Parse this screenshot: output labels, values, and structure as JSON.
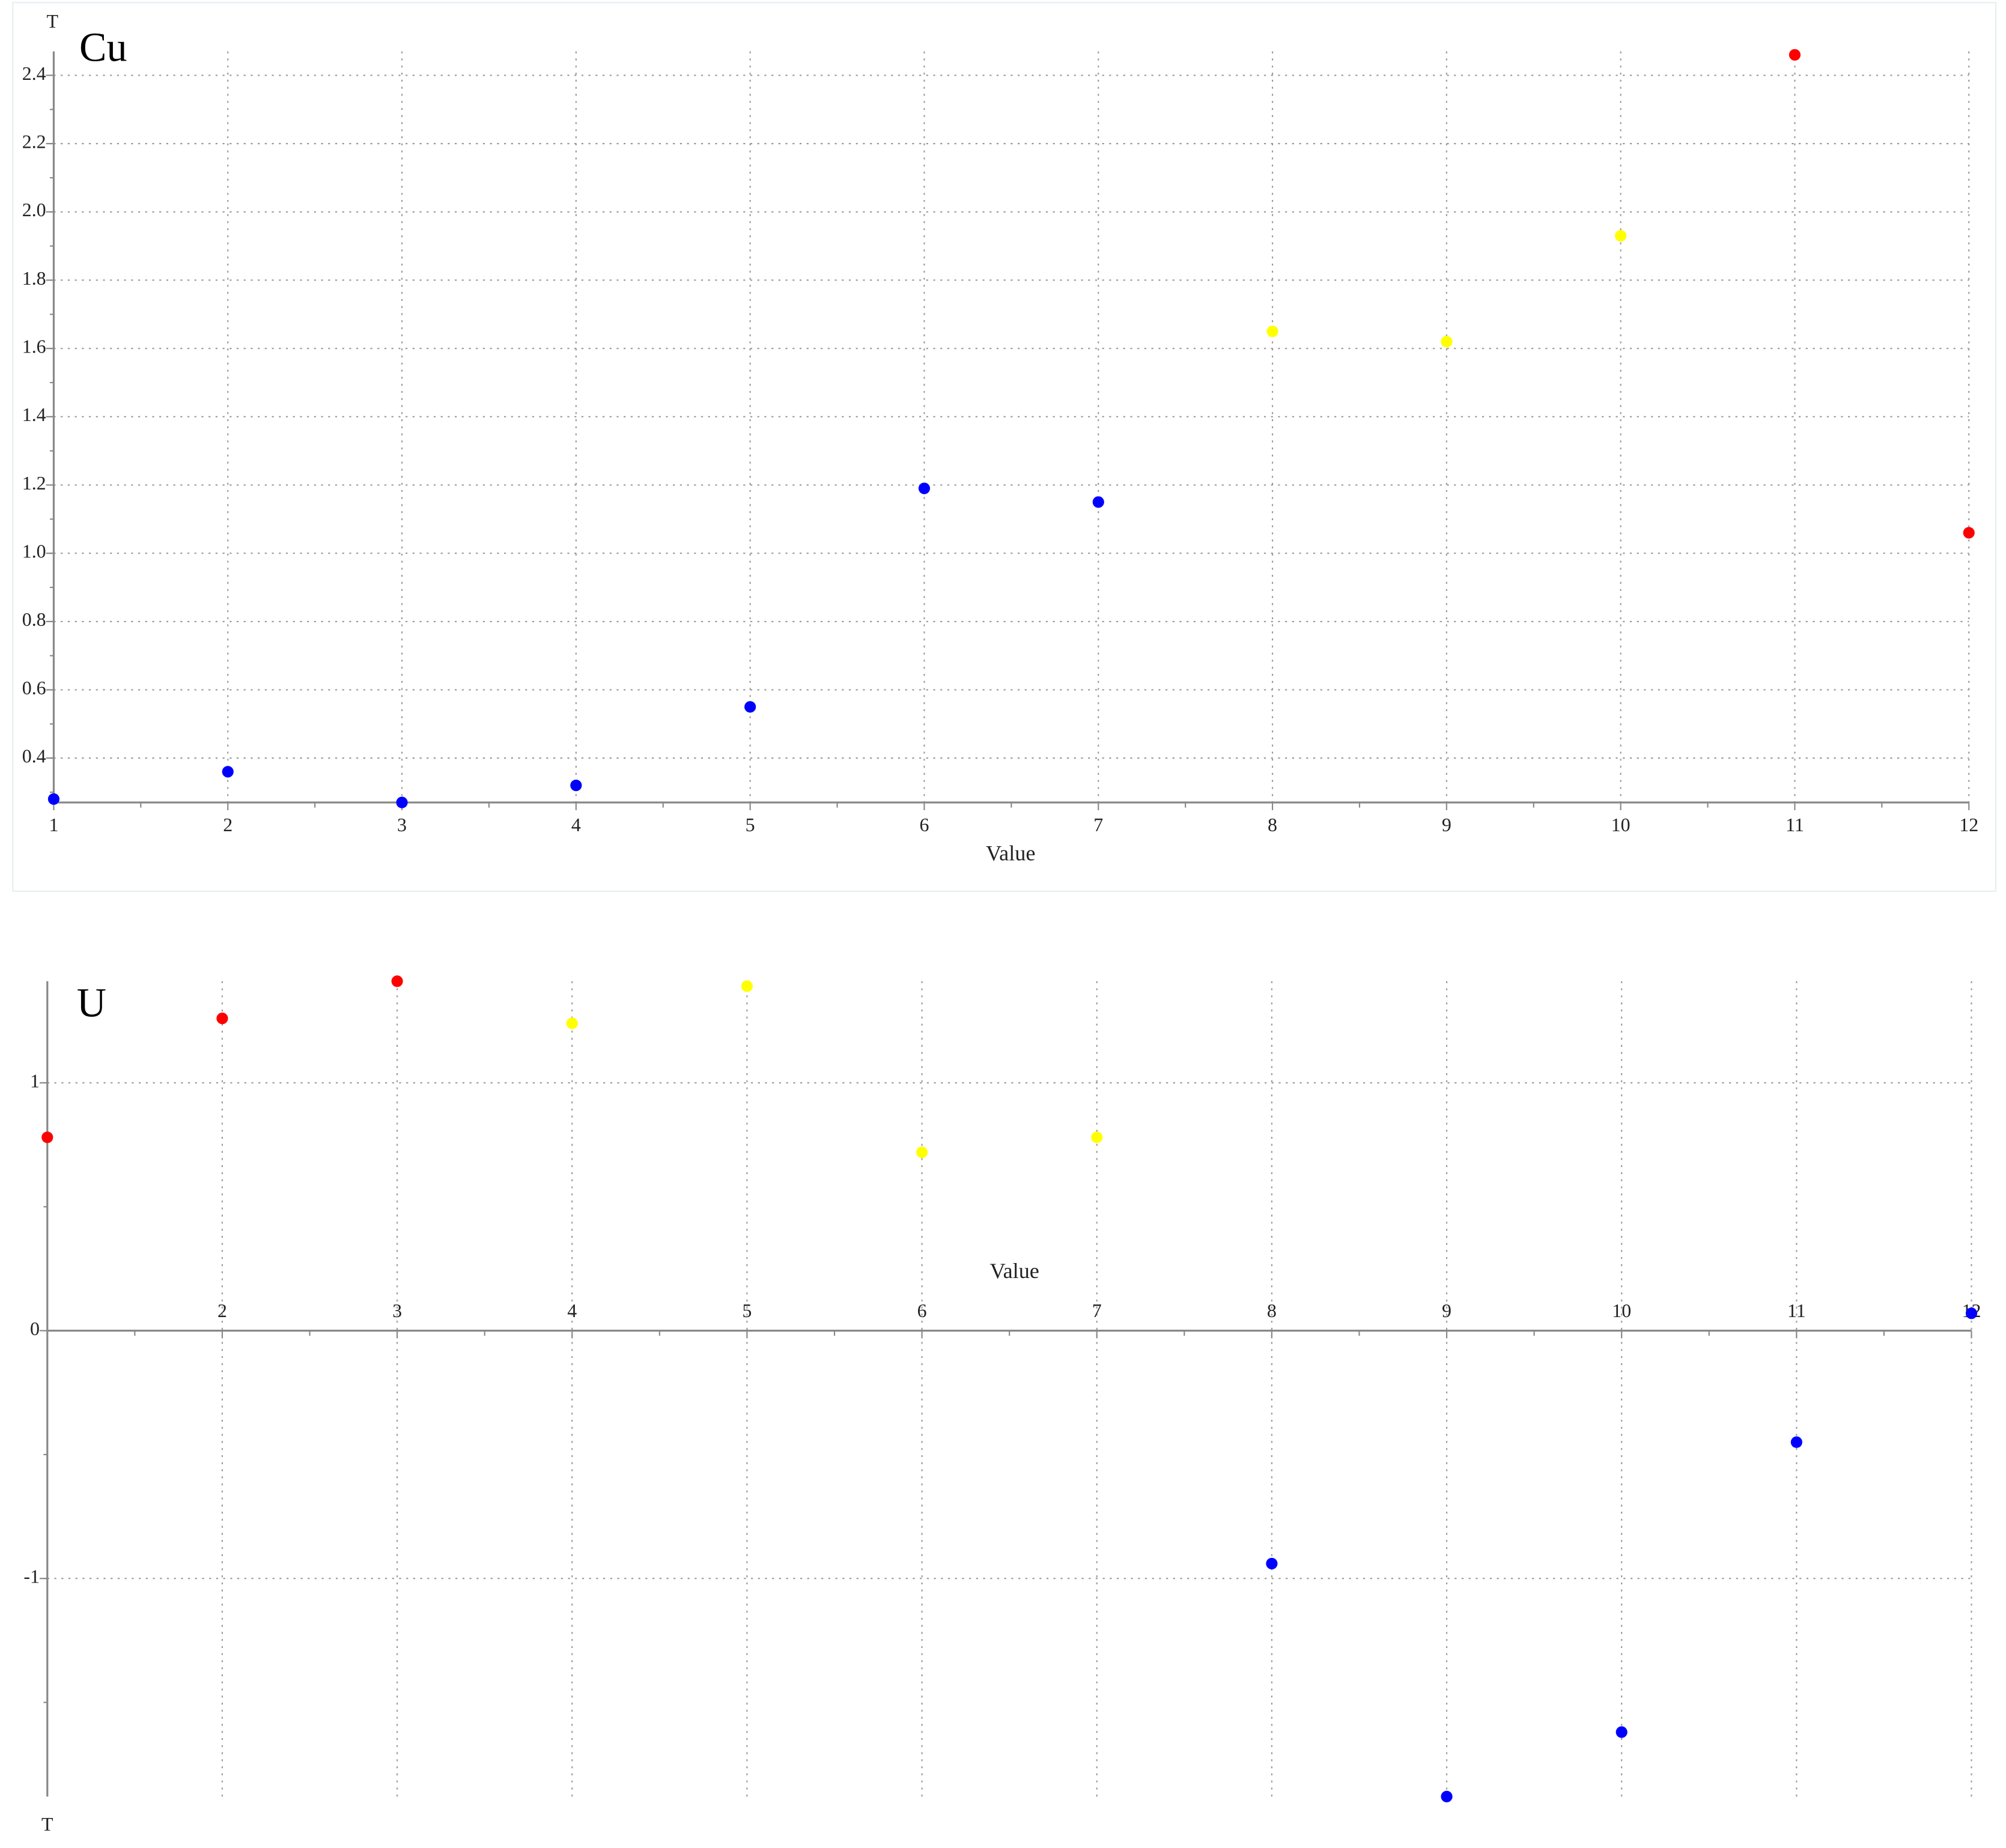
{
  "chart_data": [
    {
      "type": "scatter",
      "title": "Cu",
      "x_label": "Value",
      "y_label": "T",
      "x": [
        1,
        2,
        3,
        4,
        5,
        6,
        7,
        8,
        9,
        10,
        11,
        12
      ],
      "values": [
        0.28,
        0.36,
        0.27,
        0.32,
        0.55,
        1.19,
        1.15,
        1.65,
        1.62,
        1.93,
        2.46,
        1.06
      ],
      "colors": [
        "#0000ff",
        "#0000ff",
        "#0000ff",
        "#0000ff",
        "#0000ff",
        "#0000ff",
        "#0000ff",
        "#ffff00",
        "#ffff00",
        "#ffff00",
        "#ff0000",
        "#ff0000"
      ],
      "xlim": [
        1,
        12
      ],
      "xticks": [
        1,
        2,
        3,
        4,
        5,
        6,
        7,
        8,
        9,
        10,
        11,
        12
      ],
      "ylim": [
        0.27,
        2.47
      ],
      "yticks": [
        {
          "value": 0.4,
          "label": "0.4"
        },
        {
          "value": 0.6,
          "label": "0.6"
        },
        {
          "value": 0.8,
          "label": "0.8"
        },
        {
          "value": 1.0,
          "label": "1.0"
        },
        {
          "value": 1.2,
          "label": "1.2"
        },
        {
          "value": 1.4,
          "label": "1.4"
        },
        {
          "value": 1.6,
          "label": "1.6"
        },
        {
          "value": 1.8,
          "label": "1.8"
        },
        {
          "value": 2.0,
          "label": "2.0"
        },
        {
          "value": 2.2,
          "label": "2.2"
        },
        {
          "value": 2.4,
          "label": "2.4"
        }
      ],
      "grid": true
    },
    {
      "type": "scatter",
      "title": "U",
      "x_label": "Value",
      "y_label": "T",
      "x": [
        1,
        2,
        3,
        4,
        5,
        6,
        7,
        8,
        9,
        10,
        11,
        12
      ],
      "values": [
        0.78,
        1.26,
        1.41,
        1.24,
        1.39,
        0.72,
        0.78,
        -0.94,
        -1.88,
        -1.62,
        -0.45,
        0.07
      ],
      "colors": [
        "#ff0000",
        "#ff0000",
        "#ff0000",
        "#ffff00",
        "#ffff00",
        "#ffff00",
        "#ffff00",
        "#0000ff",
        "#0000ff",
        "#0000ff",
        "#0000ff",
        "#0000ff"
      ],
      "xlim": [
        1,
        12
      ],
      "xticks": [
        2,
        3,
        4,
        5,
        6,
        7,
        8,
        9,
        10,
        11,
        12
      ],
      "ylim": [
        -1.88,
        1.41
      ],
      "yticks": [
        -1,
        0,
        1
      ],
      "grid": true
    }
  ]
}
